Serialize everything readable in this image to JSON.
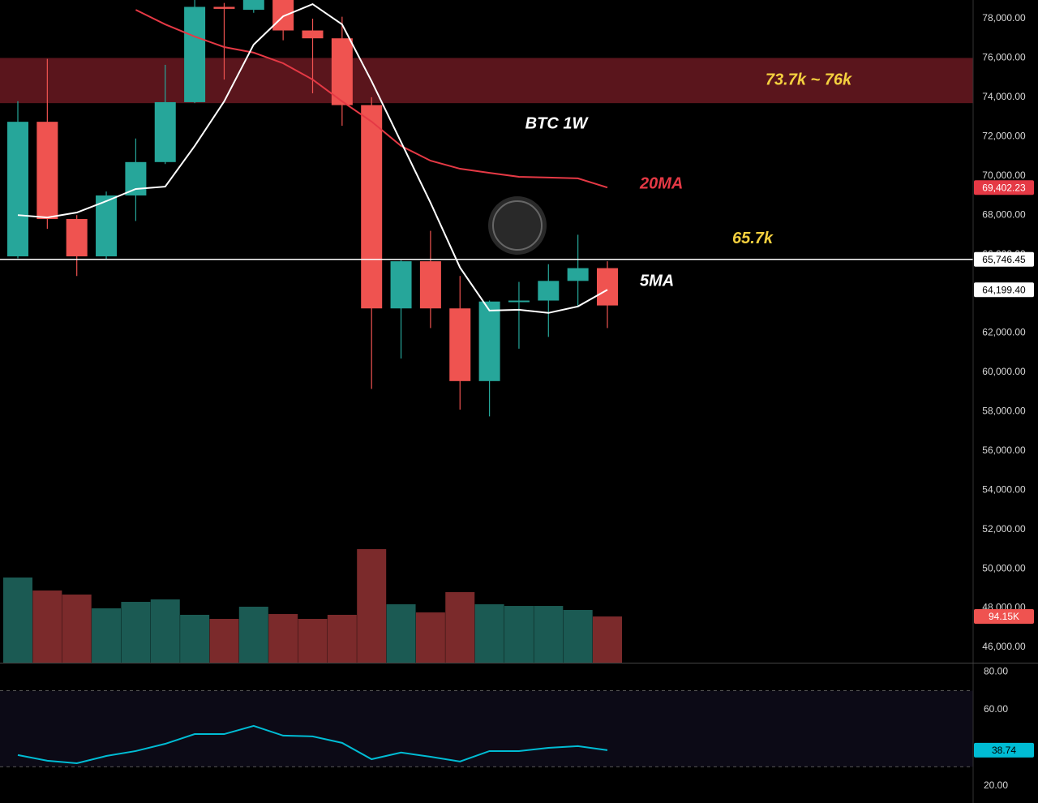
{
  "chart_data": {
    "type": "candlestick",
    "title": "BTC 1W",
    "up_color": "#26a69a",
    "down_color": "#ef5350",
    "open": [
      65900,
      72750,
      67800,
      65900,
      69000,
      70700,
      73750,
      78600,
      78450,
      79100,
      77400,
      77000,
      73600,
      63250,
      65650,
      63250,
      59550,
      63600,
      63650,
      64650,
      65300
    ],
    "high": [
      73800,
      75950,
      68000,
      69200,
      71900,
      75650,
      79200,
      78800,
      79500,
      79500,
      78000,
      78100,
      74000,
      65700,
      67200,
      64900,
      63650,
      64600,
      65500,
      67000,
      65650
    ],
    "low": [
      65800,
      67300,
      64900,
      65750,
      67700,
      70600,
      73700,
      74900,
      78300,
      76900,
      74200,
      72550,
      59150,
      60700,
      62250,
      58100,
      57750,
      61200,
      61800,
      63350,
      62250
    ],
    "close": [
      72750,
      67800,
      65900,
      69000,
      70700,
      73750,
      78600,
      78500,
      79100,
      77400,
      77000,
      73600,
      63250,
      65650,
      63250,
      59550,
      63600,
      63650,
      64650,
      65300,
      63400
    ],
    "ylim": [
      45215,
      78950
    ],
    "yticks": [
      {
        "value": 46000,
        "label": "46,000.00"
      },
      {
        "value": 48000,
        "label": "48,000.00"
      },
      {
        "value": 50000,
        "label": "50,000.00"
      },
      {
        "value": 52000,
        "label": "52,000.00"
      },
      {
        "value": 54000,
        "label": "54,000.00"
      },
      {
        "value": 56000,
        "label": "56,000.00"
      },
      {
        "value": 58000,
        "label": "58,000.00"
      },
      {
        "value": 60000,
        "label": "60,000.00"
      },
      {
        "value": 62000,
        "label": "62,000.00"
      },
      {
        "value": 66000,
        "label": "66,000.00"
      },
      {
        "value": 68000,
        "label": "68,000.00"
      },
      {
        "value": 70000,
        "label": "70,000.00"
      },
      {
        "value": 72000,
        "label": "72,000.00"
      },
      {
        "value": 74000,
        "label": "74,000.00"
      },
      {
        "value": 76000,
        "label": "76,000.00"
      },
      {
        "value": 78000,
        "label": "78,000.00"
      }
    ],
    "series": [
      {
        "name": "20MA",
        "color": "#e53945",
        "values": [
          null,
          null,
          null,
          null,
          78450,
          77710,
          77090,
          76555,
          76270,
          75730,
          74900,
          73790,
          72760,
          71520,
          70770,
          70360,
          70150,
          69950,
          69910,
          69870,
          69402.23
        ],
        "last_label": "69,402.23"
      },
      {
        "name": "5MA",
        "color": "#ffffff",
        "values": [
          68000,
          67880,
          68130,
          68710,
          69330,
          69450,
          71520,
          73790,
          76680,
          78120,
          78740,
          77710,
          74820,
          71720,
          68630,
          65330,
          63140,
          63180,
          63020,
          63350,
          64199.4
        ],
        "last_label": "64,199.40"
      }
    ],
    "levels": [
      {
        "value": 65746.45,
        "label": "65,746.45",
        "name": "65.7k",
        "color": "#ffffff"
      }
    ],
    "zones": [
      {
        "from": 73700,
        "to": 76000,
        "label": "73.7k ~ 76k",
        "color": "#5a151c"
      }
    ],
    "volume": {
      "values": [
        173.5,
        147,
        138.8,
        110.7,
        123.9,
        128.9,
        97.5,
        89.2,
        114,
        99.1,
        89.2,
        97.5,
        231.3,
        119,
        102.4,
        143.7,
        119,
        115.6,
        115.6,
        107.4,
        94.15
      ],
      "ylim": [
        0,
        390
      ],
      "last_label": "94.15K",
      "up_color": "#1b5a53",
      "down_color": "#7b2a2b"
    },
    "rsi": {
      "values": [
        36.2,
        33.2,
        31.9,
        35.7,
        38.3,
        42.1,
        47.2,
        47.2,
        51.5,
        46.4,
        46,
        42.6,
        34,
        37.5,
        35.3,
        32.8,
        38.3,
        38.3,
        40,
        40.9,
        38.74
      ],
      "ylim": [
        11,
        84.3
      ],
      "yticks": [
        {
          "value": 80,
          "label": "80.00"
        },
        {
          "value": 60,
          "label": "60.00"
        },
        {
          "value": 20,
          "label": "20.00"
        }
      ],
      "band": [
        30,
        70
      ],
      "color": "#00bcd4",
      "last_label": "38.74"
    }
  }
}
